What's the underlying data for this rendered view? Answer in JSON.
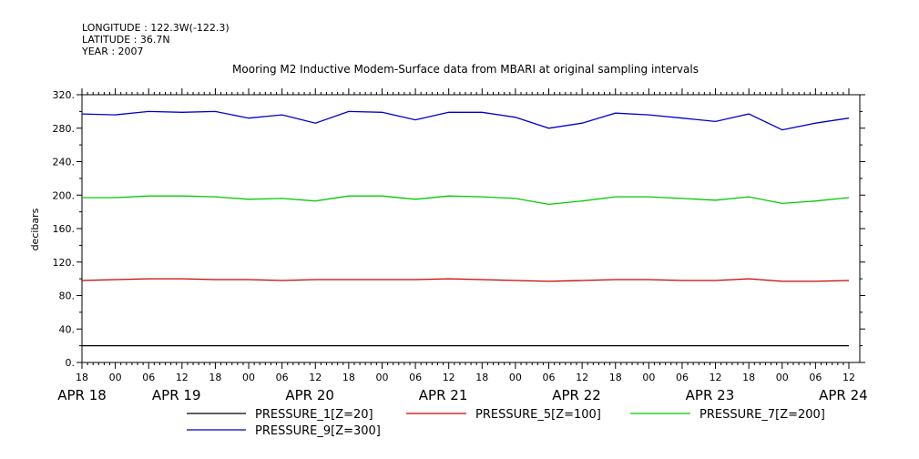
{
  "meta": {
    "longitude": "LONGITUDE : 122.3W(-122.3)",
    "latitude": "LATITUDE : 36.7N",
    "year": "YEAR : 2007"
  },
  "chart_data": {
    "type": "line",
    "title": "Mooring M2 Inductive Modem-Surface data from MBARI at original sampling intervals",
    "ylabel": "decibars",
    "xlabel": "",
    "ylim": [
      0,
      320
    ],
    "xlim": [
      0,
      138
    ],
    "x_unit": "hours since APR 18 18:00",
    "y_ticks": [
      "0.",
      "40.",
      "80.",
      "120.",
      "160.",
      "200.",
      "240.",
      "280.",
      "320."
    ],
    "x_ticks": [
      {
        "x": 0,
        "label": "18"
      },
      {
        "x": 6,
        "label": "00"
      },
      {
        "x": 12,
        "label": "06"
      },
      {
        "x": 18,
        "label": "12"
      },
      {
        "x": 24,
        "label": "18"
      },
      {
        "x": 30,
        "label": "00"
      },
      {
        "x": 36,
        "label": "06"
      },
      {
        "x": 42,
        "label": "12"
      },
      {
        "x": 48,
        "label": "18"
      },
      {
        "x": 54,
        "label": "00"
      },
      {
        "x": 60,
        "label": "06"
      },
      {
        "x": 66,
        "label": "12"
      },
      {
        "x": 72,
        "label": "18"
      },
      {
        "x": 78,
        "label": "00"
      },
      {
        "x": 84,
        "label": "06"
      },
      {
        "x": 90,
        "label": "12"
      },
      {
        "x": 96,
        "label": "18"
      },
      {
        "x": 102,
        "label": "00"
      },
      {
        "x": 108,
        "label": "06"
      },
      {
        "x": 114,
        "label": "12"
      },
      {
        "x": 120,
        "label": "18"
      },
      {
        "x": 126,
        "label": "00"
      },
      {
        "x": 132,
        "label": "06"
      },
      {
        "x": 138,
        "label": "12"
      }
    ],
    "date_labels": [
      {
        "x": 0,
        "label": "APR 18"
      },
      {
        "x": 17,
        "label": "APR 19"
      },
      {
        "x": 41,
        "label": "APR 20"
      },
      {
        "x": 65,
        "label": "APR 21"
      },
      {
        "x": 89,
        "label": "APR 22"
      },
      {
        "x": 113,
        "label": "APR 23"
      },
      {
        "x": 137,
        "label": "APR 24"
      }
    ],
    "x": [
      0,
      6,
      12,
      18,
      24,
      30,
      36,
      42,
      48,
      54,
      60,
      66,
      72,
      78,
      84,
      90,
      96,
      102,
      108,
      114,
      120,
      126,
      132,
      138
    ],
    "series": [
      {
        "name": "PRESSURE_1[Z=20]",
        "color": "#000000",
        "values": [
          20,
          20,
          20,
          20,
          20,
          20,
          20,
          20,
          20,
          20,
          20,
          20,
          20,
          20,
          20,
          20,
          20,
          20,
          20,
          20,
          20,
          20,
          20,
          20
        ]
      },
      {
        "name": "PRESSURE_5[Z=100]",
        "color": "#cc0000",
        "values": [
          98,
          99,
          100,
          100,
          99,
          99,
          98,
          99,
          99,
          99,
          99,
          100,
          99,
          98,
          97,
          98,
          99,
          99,
          98,
          98,
          100,
          97,
          97,
          98
        ]
      },
      {
        "name": "PRESSURE_7[Z=200]",
        "color": "#00cc00",
        "values": [
          197,
          197,
          199,
          199,
          198,
          195,
          196,
          193,
          199,
          199,
          195,
          199,
          198,
          196,
          189,
          193,
          198,
          198,
          196,
          194,
          198,
          190,
          193,
          197
        ]
      },
      {
        "name": "PRESSURE_9[Z=300]",
        "color": "#0000cc",
        "values": [
          297,
          296,
          300,
          299,
          300,
          292,
          296,
          286,
          300,
          299,
          290,
          299,
          299,
          293,
          280,
          286,
          298,
          296,
          292,
          288,
          297,
          278,
          286,
          292
        ]
      }
    ],
    "grid": false,
    "legend": "bottom"
  }
}
